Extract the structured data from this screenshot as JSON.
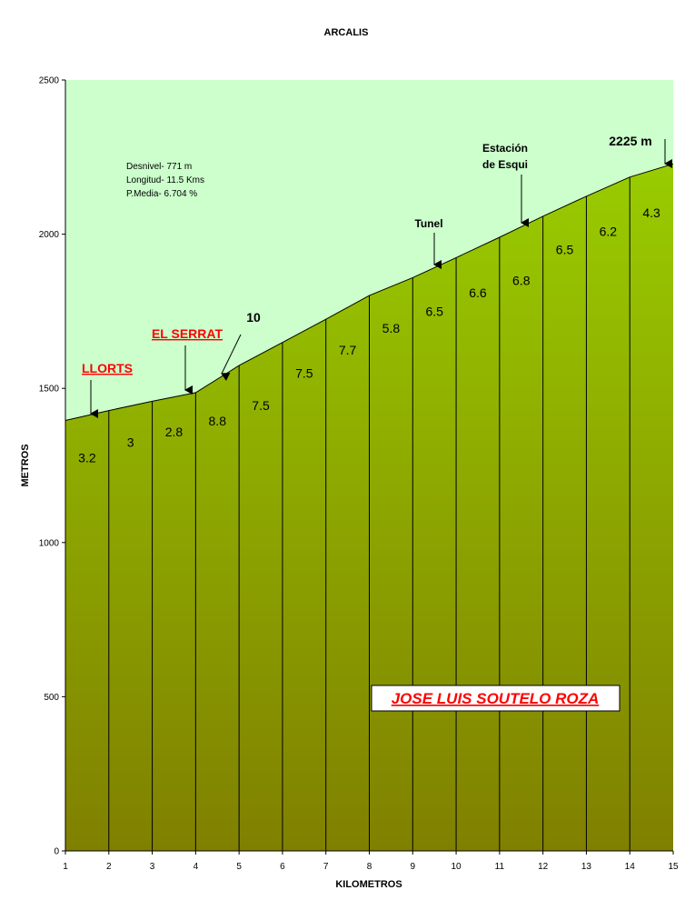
{
  "chart_data": {
    "type": "area",
    "title": "ARCALIS",
    "xlabel": "KILOMETROS",
    "ylabel": "METROS",
    "xlim": [
      1,
      15
    ],
    "ylim": [
      0,
      2500
    ],
    "x_ticks": [
      "1",
      "2",
      "3",
      "4",
      "5",
      "6",
      "7",
      "8",
      "9",
      "10",
      "11",
      "12",
      "13",
      "14",
      "15"
    ],
    "y_ticks": [
      "0",
      "500",
      "1000",
      "1500",
      "2000",
      "2500"
    ],
    "points": [
      {
        "x": 1,
        "y": 1396
      },
      {
        "x": 2,
        "y": 1428
      },
      {
        "x": 3,
        "y": 1458
      },
      {
        "x": 4,
        "y": 1486
      },
      {
        "x": 5,
        "y": 1574
      },
      {
        "x": 6,
        "y": 1649
      },
      {
        "x": 7,
        "y": 1724
      },
      {
        "x": 8,
        "y": 1801
      },
      {
        "x": 9,
        "y": 1859
      },
      {
        "x": 10,
        "y": 1924
      },
      {
        "x": 11,
        "y": 1990
      },
      {
        "x": 12,
        "y": 2058
      },
      {
        "x": 13,
        "y": 2123
      },
      {
        "x": 14,
        "y": 2185
      },
      {
        "x": 15,
        "y": 2228
      }
    ],
    "segment_gradients": [
      {
        "x": 1.5,
        "y": 1260,
        "label": "3.2"
      },
      {
        "x": 2.5,
        "y": 1310,
        "label": "3"
      },
      {
        "x": 3.5,
        "y": 1345,
        "label": "2.8"
      },
      {
        "x": 4.5,
        "y": 1380,
        "label": "8.8"
      },
      {
        "x": 5.5,
        "y": 1430,
        "label": "7.5"
      },
      {
        "x": 6.5,
        "y": 1535,
        "label": "7.5"
      },
      {
        "x": 7.5,
        "y": 1610,
        "label": "7.7"
      },
      {
        "x": 8.5,
        "y": 1680,
        "label": "5.8"
      },
      {
        "x": 9.5,
        "y": 1735,
        "label": "6.5"
      },
      {
        "x": 10.5,
        "y": 1795,
        "label": "6.6"
      },
      {
        "x": 11.5,
        "y": 1835,
        "label": "6.8"
      },
      {
        "x": 12.5,
        "y": 1935,
        "label": "6.5"
      },
      {
        "x": 13.5,
        "y": 1995,
        "label": "6.2"
      },
      {
        "x": 14.5,
        "y": 2055,
        "label": "4.3"
      }
    ],
    "stats": [
      "Desnivel- 771 m",
      "Longitud- 11.5 Kms",
      "P.Media- 6.704 %"
    ],
    "annotations": {
      "llorts": "LLORTS",
      "el_serrat": "EL SERRAT",
      "max_grad": "10",
      "tunel": "Tunel",
      "estacion_1": "Estación",
      "estacion_2": "de Esqui",
      "summit": "2225 m"
    },
    "author": "JOSE LUIS SOUTELO ROZA",
    "colors": {
      "sky": "#ccffcc",
      "fill_top": "#99cc00",
      "fill_bottom": "#808000",
      "red": "#ff0000"
    }
  }
}
